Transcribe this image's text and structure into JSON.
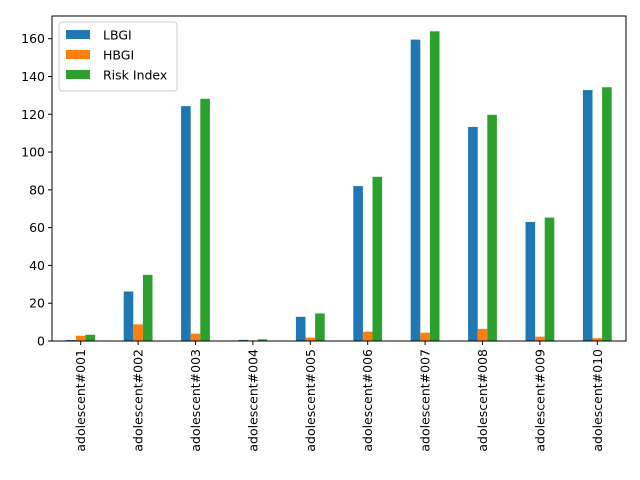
{
  "chart_data": {
    "type": "bar",
    "title": "",
    "xlabel": "",
    "ylabel": "",
    "categories": [
      "adolescent#001",
      "adolescent#002",
      "adolescent#003",
      "adolescent#004",
      "adolescent#005",
      "adolescent#006",
      "adolescent#007",
      "adolescent#008",
      "adolescent#009",
      "adolescent#010"
    ],
    "series": [
      {
        "name": "LBGI",
        "color": "#1f77b4",
        "values": [
          0.5,
          26.2,
          124.3,
          0.6,
          12.8,
          82.0,
          159.5,
          113.3,
          63.0,
          132.8
        ]
      },
      {
        "name": "HBGI",
        "color": "#ff7f0e",
        "values": [
          2.8,
          8.8,
          3.9,
          0.3,
          1.8,
          4.9,
          4.4,
          6.4,
          2.3,
          1.5
        ]
      },
      {
        "name": "Risk Index",
        "color": "#2ca02c",
        "values": [
          3.3,
          35.0,
          128.2,
          0.9,
          14.6,
          86.9,
          163.9,
          119.7,
          65.3,
          134.3
        ]
      }
    ],
    "ylim": [
      0,
      172
    ],
    "yticks": [
      0,
      20,
      40,
      60,
      80,
      100,
      120,
      140,
      160
    ],
    "grid": false,
    "legend": "top-left"
  }
}
